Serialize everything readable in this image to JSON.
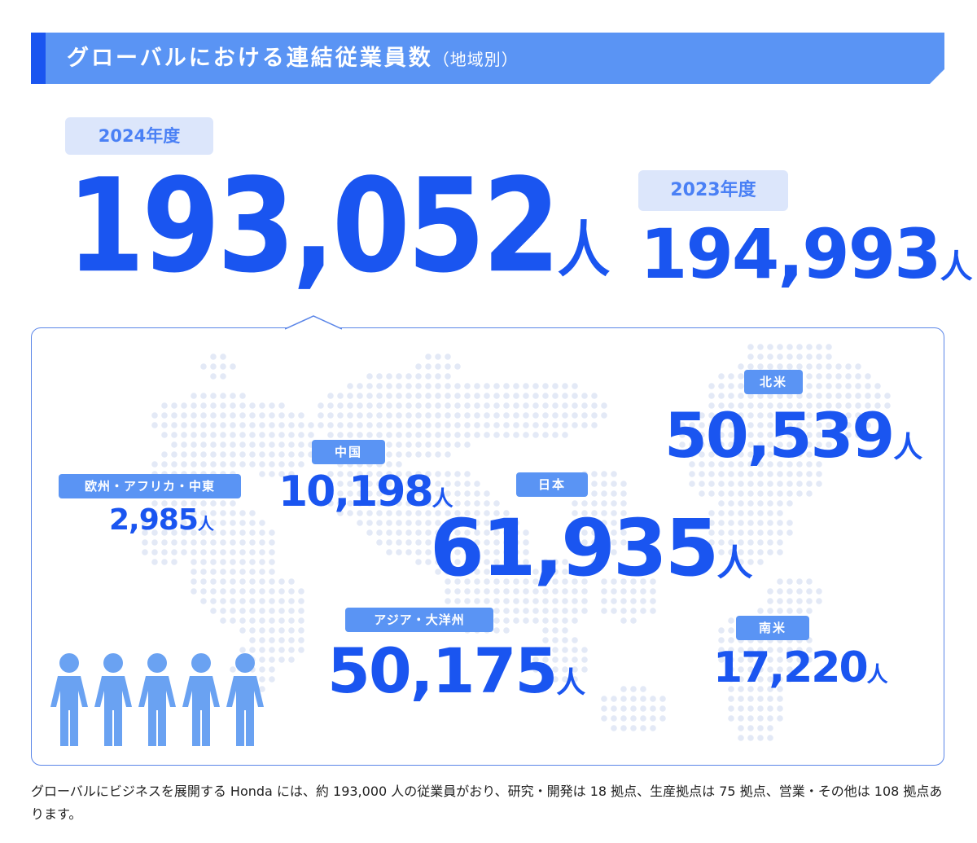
{
  "header": {
    "title": "グローバルにおける連結従業員数",
    "subtitle": "（地域別）"
  },
  "current": {
    "year_label": "2024年度",
    "value": "193,052",
    "unit": "人"
  },
  "previous": {
    "year_label": "2023年度",
    "value": "194,993",
    "unit": "人"
  },
  "regions": [
    {
      "label": "北米",
      "value": "50,539",
      "unit": "人"
    },
    {
      "label": "中国",
      "value": "10,198",
      "unit": "人"
    },
    {
      "label": "欧州・アフリカ・中東",
      "value": "2,985",
      "unit": "人"
    },
    {
      "label": "日本",
      "value": "61,935",
      "unit": "人"
    },
    {
      "label": "アジア・大洋州",
      "value": "50,175",
      "unit": "人"
    },
    {
      "label": "南米",
      "value": "17,220",
      "unit": "人"
    }
  ],
  "footnote": "グローバルにビジネスを展開する Honda には、約 193,000 人の従業員がおり、研究・開発は 18 拠点、生産拠点は 75 拠点、営業・その他は 108 拠点あります。",
  "colors": {
    "accent": "#1a55f0",
    "banner": "#5a94f4",
    "banner_dark": "#1a55f0",
    "tag": "#5a94f4",
    "pill_bg": "#dce6fb",
    "map_dots": "#e3e9f6",
    "people": "#6aa2f2"
  },
  "icons": [
    "people-group-icon",
    "world-map-dots"
  ]
}
